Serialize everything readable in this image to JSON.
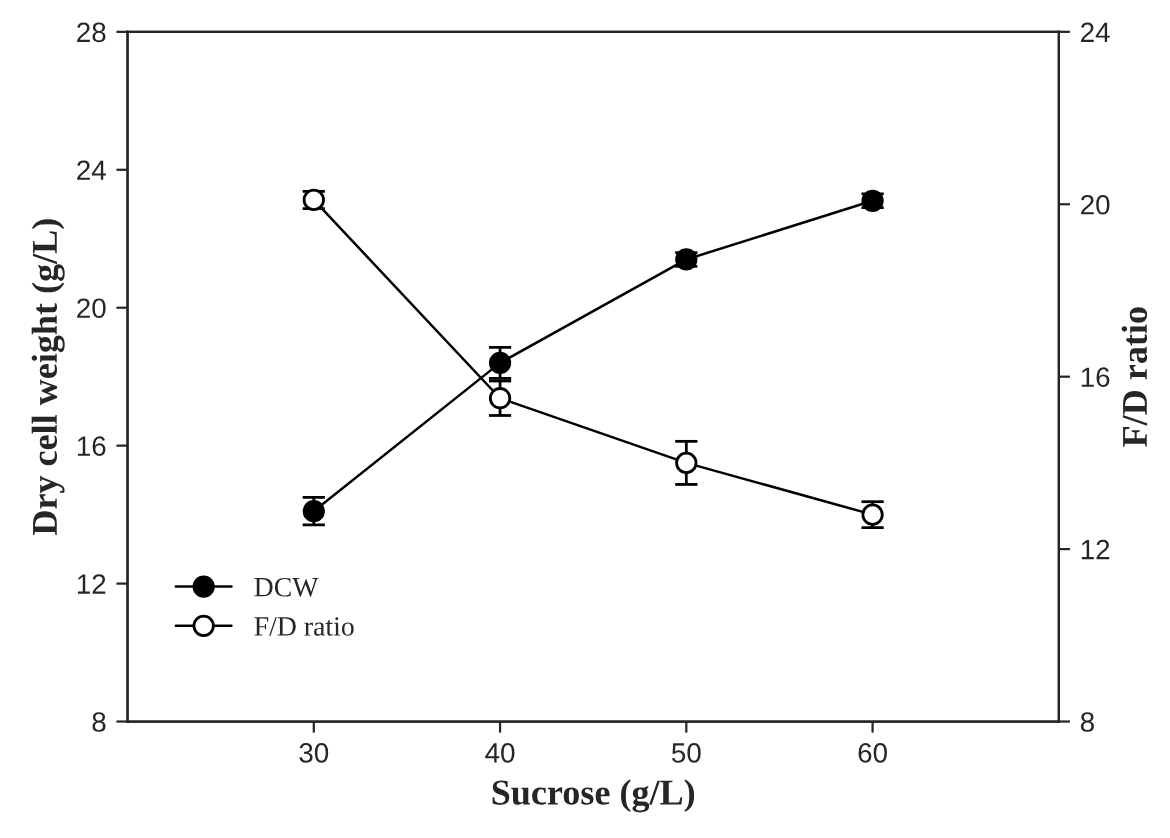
{
  "chart_data": {
    "type": "line",
    "xlabel": "Sucrose (g/L)",
    "ylabel": "Dry cell weight (g/L)",
    "y2label": "F/D ratio",
    "x": [
      30,
      40,
      50,
      60
    ],
    "series": [
      {
        "name": "DCW",
        "color": "#000000",
        "values": [
          14.1,
          18.4,
          21.4,
          23.1
        ],
        "errors": [
          0.4,
          0.45,
          0.2,
          0.2
        ]
      },
      {
        "name": "F/D ratio",
        "color": "#ffffff",
        "axis": "y2",
        "values": [
          20.1,
          15.5,
          14.0,
          12.8
        ],
        "errors": [
          0.2,
          0.4,
          0.5,
          0.3
        ]
      }
    ],
    "xlim": [
      20,
      70
    ],
    "xticks": [
      30,
      40,
      50,
      60
    ],
    "ylim": [
      8,
      28
    ],
    "yticks": [
      8,
      12,
      16,
      20,
      24,
      28
    ],
    "y2lim": [
      8,
      24
    ],
    "y2ticks": [
      8,
      12,
      16,
      20,
      24
    ],
    "grid": false,
    "legend": "bottom left",
    "marker": "circle",
    "line_style": "solid"
  }
}
